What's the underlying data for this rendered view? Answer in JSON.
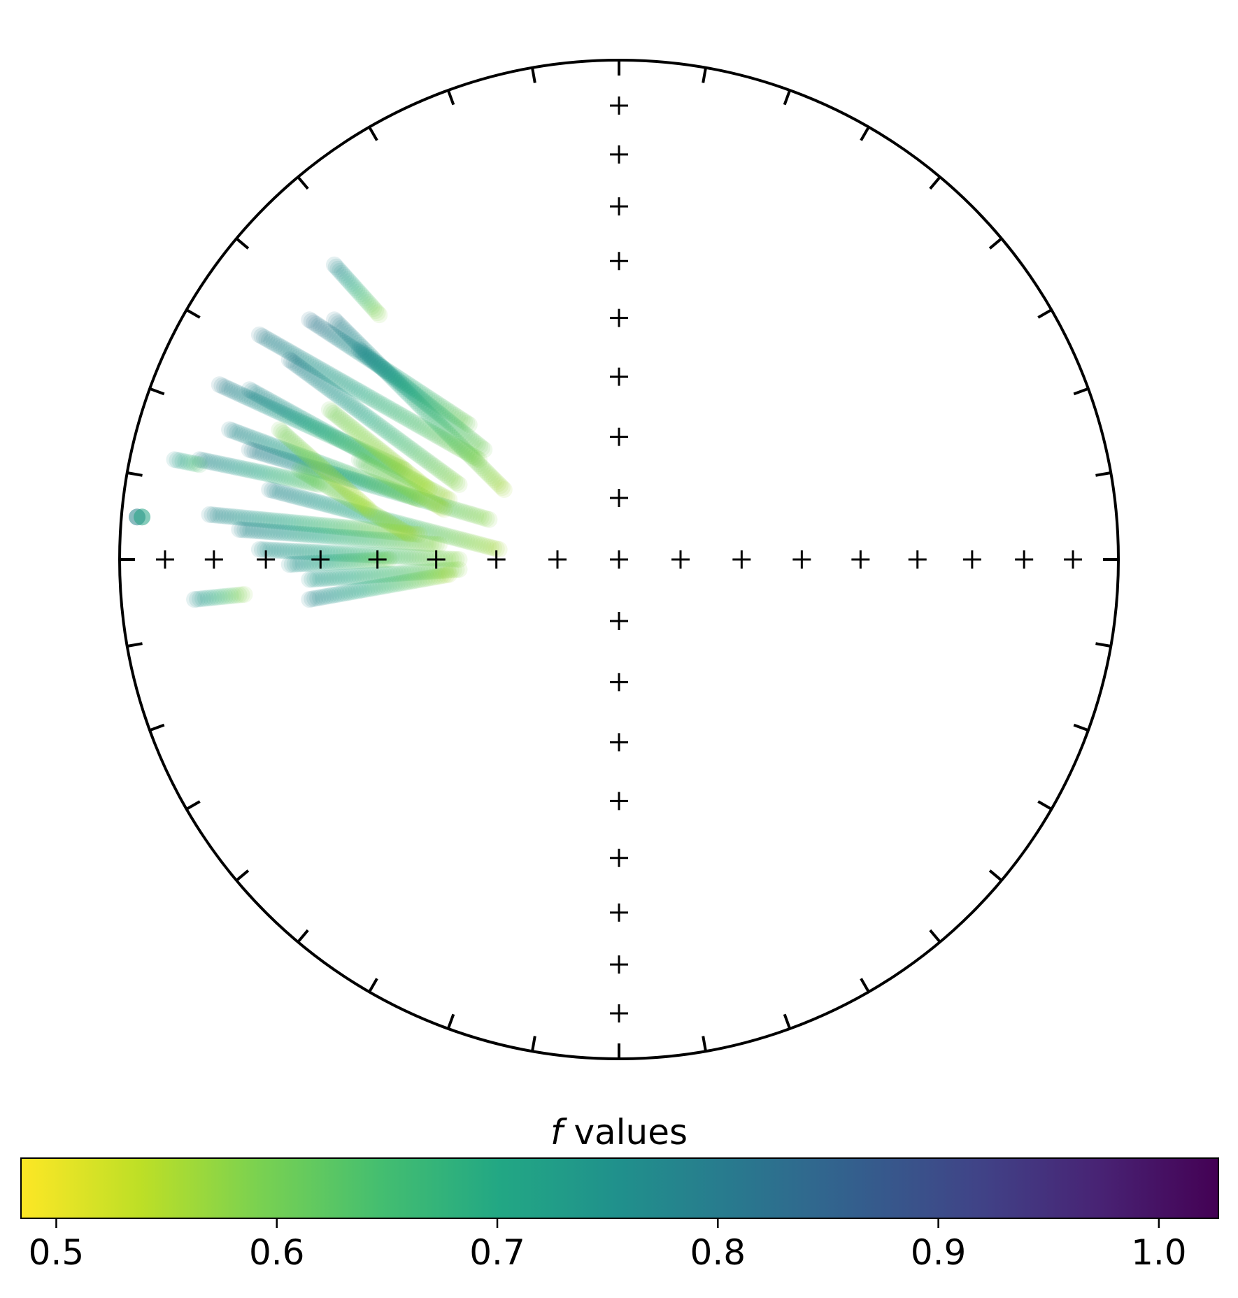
{
  "chart_data": {
    "type": "scatter",
    "projection": "equal-area stereonet (lower hemisphere)",
    "title": "",
    "xlabel": "",
    "ylabel": "",
    "grid": false,
    "center_crosses": true,
    "colorbar": {
      "label_italic": "f",
      "label_rest": " values",
      "colormap": "viridis_r",
      "range": [
        0.484,
        1.027
      ],
      "ticks": [
        "0.5",
        "0.6",
        "0.7",
        "0.8",
        "0.9",
        "1.0"
      ],
      "tick_values": [
        0.5,
        0.6,
        0.7,
        0.8,
        0.9,
        1.0
      ],
      "placement": "bottom"
    },
    "point_alpha": 0.12,
    "streaks": [
      {
        "from": [
          -0.57,
          0.59
        ],
        "to": [
          -0.48,
          0.49
        ],
        "f": [
          0.78,
          0.58
        ]
      },
      {
        "from": [
          -0.72,
          0.45
        ],
        "to": [
          -0.28,
          0.2
        ],
        "f": [
          0.8,
          0.58
        ]
      },
      {
        "from": [
          -0.62,
          0.48
        ],
        "to": [
          -0.3,
          0.27
        ],
        "f": [
          0.82,
          0.6
        ]
      },
      {
        "from": [
          -0.57,
          0.48
        ],
        "to": [
          -0.23,
          0.14
        ],
        "f": [
          0.8,
          0.56
        ]
      },
      {
        "from": [
          -0.52,
          0.42
        ],
        "to": [
          -0.27,
          0.22
        ],
        "f": [
          0.78,
          0.6
        ]
      },
      {
        "from": [
          -0.8,
          0.35
        ],
        "to": [
          -0.43,
          0.18
        ],
        "f": [
          0.8,
          0.58
        ]
      },
      {
        "from": [
          -0.74,
          0.34
        ],
        "to": [
          -0.34,
          0.12
        ],
        "f": [
          0.78,
          0.56
        ]
      },
      {
        "from": [
          -0.66,
          0.4
        ],
        "to": [
          -0.32,
          0.15
        ],
        "f": [
          0.8,
          0.58
        ]
      },
      {
        "from": [
          -0.78,
          0.26
        ],
        "to": [
          -0.4,
          0.12
        ],
        "f": [
          0.78,
          0.56
        ]
      },
      {
        "from": [
          -0.74,
          0.22
        ],
        "to": [
          -0.26,
          0.08
        ],
        "f": [
          0.8,
          0.58
        ]
      },
      {
        "from": [
          -0.7,
          0.14
        ],
        "to": [
          -0.24,
          0.02
        ],
        "f": [
          0.78,
          0.56
        ]
      },
      {
        "from": [
          -0.84,
          0.2
        ],
        "to": [
          -0.6,
          0.15
        ],
        "f": [
          0.78,
          0.62
        ]
      },
      {
        "from": [
          -0.89,
          0.2
        ],
        "to": [
          -0.84,
          0.19
        ],
        "f": [
          0.74,
          0.64
        ]
      },
      {
        "from": [
          -0.82,
          0.09
        ],
        "to": [
          -0.4,
          0.05
        ],
        "f": [
          0.78,
          0.56
        ]
      },
      {
        "from": [
          -0.76,
          0.06
        ],
        "to": [
          -0.36,
          0.03
        ],
        "f": [
          0.78,
          0.58
        ]
      },
      {
        "from": [
          -0.72,
          0.02
        ],
        "to": [
          -0.32,
          0.0
        ],
        "f": [
          0.76,
          0.58
        ]
      },
      {
        "from": [
          -0.66,
          -0.01
        ],
        "to": [
          -0.46,
          0.0
        ],
        "f": [
          0.76,
          0.6
        ]
      },
      {
        "from": [
          -0.62,
          -0.04
        ],
        "to": [
          -0.32,
          -0.02
        ],
        "f": [
          0.74,
          0.58
        ]
      },
      {
        "from": [
          -0.62,
          -0.08
        ],
        "to": [
          -0.34,
          -0.03
        ],
        "f": [
          0.78,
          0.56
        ]
      },
      {
        "from": [
          -0.85,
          -0.08
        ],
        "to": [
          -0.75,
          -0.07
        ],
        "f": [
          0.76,
          0.58
        ]
      },
      {
        "from": [
          -0.64,
          0.18
        ],
        "to": [
          -0.42,
          0.05
        ],
        "f": [
          0.62,
          0.56
        ]
      },
      {
        "from": [
          -0.58,
          0.3
        ],
        "to": [
          -0.38,
          0.14
        ],
        "f": [
          0.6,
          0.55
        ]
      },
      {
        "from": [
          -0.68,
          0.26
        ],
        "to": [
          -0.5,
          0.1
        ],
        "f": [
          0.6,
          0.55
        ]
      },
      {
        "from": [
          -0.52,
          0.2
        ],
        "to": [
          -0.35,
          0.1
        ],
        "f": [
          0.62,
          0.56
        ]
      }
    ],
    "single_points": [
      {
        "x": -0.965,
        "y": 0.085,
        "f": 0.79
      },
      {
        "x": -0.955,
        "y": 0.085,
        "f": 0.7
      }
    ]
  }
}
